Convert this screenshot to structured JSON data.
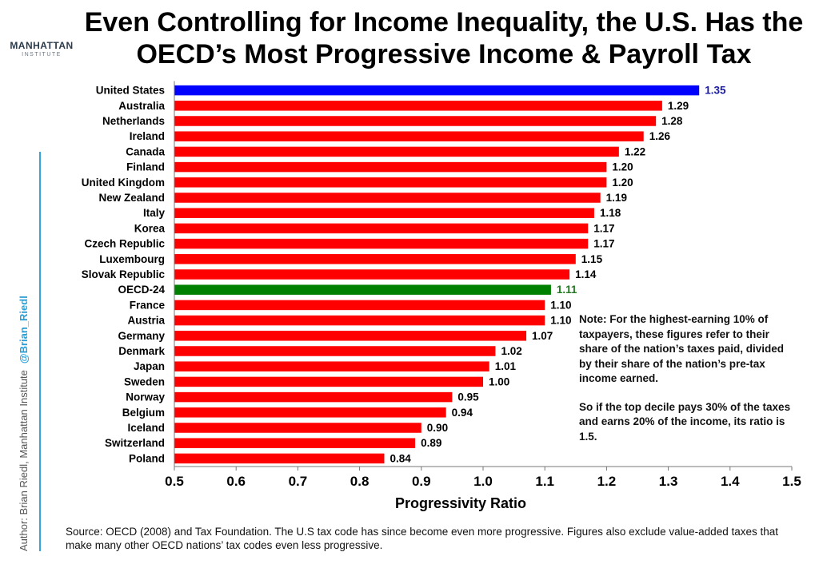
{
  "logo": {
    "name": "MANHATTAN",
    "subtitle": "INSTITUTE"
  },
  "title": "Even Controlling for Income Inequality, the U.S. Has the OECD’s Most Progressive Income & Payroll Tax",
  "side_credit": {
    "author": "Author: Brian Riedl, Manhattan Institute",
    "handle": "@Brian_Riedl"
  },
  "note": {
    "paragraph1": "Note: For the highest-earning 10% of taxpayers, these figures refer to their share of the nation’s taxes paid, divided by their share of the nation’s pre-tax income earned.",
    "paragraph2": "So if the top decile pays 30% of the taxes and earns 20% of the income, its ratio is 1.5."
  },
  "source": "Source: OECD (2008) and Tax Foundation. The U.S tax code has since become even more progressive. Figures also exclude value-added taxes that make many other OECD nations’ tax codes even less progressive.",
  "colors": {
    "default": "#ff0000",
    "highlight_us": "#0000ff",
    "highlight_oecd": "#008000",
    "us_label": "#1a1aa6",
    "oecd_label": "#207a20"
  },
  "chart_data": {
    "type": "bar",
    "orientation": "horizontal",
    "xlabel": "Progressivity Ratio",
    "xlim": [
      0.5,
      1.5
    ],
    "xticks": [
      "0.5",
      "0.6",
      "0.7",
      "0.8",
      "0.9",
      "1.0",
      "1.1",
      "1.2",
      "1.3",
      "1.4",
      "1.5"
    ],
    "categories": [
      "United States",
      "Australia",
      "Netherlands",
      "Ireland",
      "Canada",
      "Finland",
      "United Kingdom",
      "New Zealand",
      "Italy",
      "Korea",
      "Czech Republic",
      "Luxembourg",
      "Slovak Republic",
      "OECD-24",
      "France",
      "Austria",
      "Germany",
      "Denmark",
      "Japan",
      "Sweden",
      "Norway",
      "Belgium",
      "Iceland",
      "Switzerland",
      "Poland"
    ],
    "values": [
      1.35,
      1.29,
      1.28,
      1.26,
      1.22,
      1.2,
      1.2,
      1.19,
      1.18,
      1.17,
      1.17,
      1.15,
      1.14,
      1.11,
      1.1,
      1.1,
      1.07,
      1.02,
      1.01,
      1.0,
      0.95,
      0.94,
      0.9,
      0.89,
      0.84
    ],
    "value_labels": [
      "1.35",
      "1.29",
      "1.28",
      "1.26",
      "1.22",
      "1.20",
      "1.20",
      "1.19",
      "1.18",
      "1.17",
      "1.17",
      "1.15",
      "1.14",
      "1.11",
      "1.10",
      "1.10",
      "1.07",
      "1.02",
      "1.01",
      "1.00",
      "0.95",
      "0.94",
      "0.90",
      "0.89",
      "0.84"
    ],
    "highlights": {
      "United States": "highlight_us",
      "OECD-24": "highlight_oecd"
    },
    "grid": false,
    "legend": "none"
  }
}
